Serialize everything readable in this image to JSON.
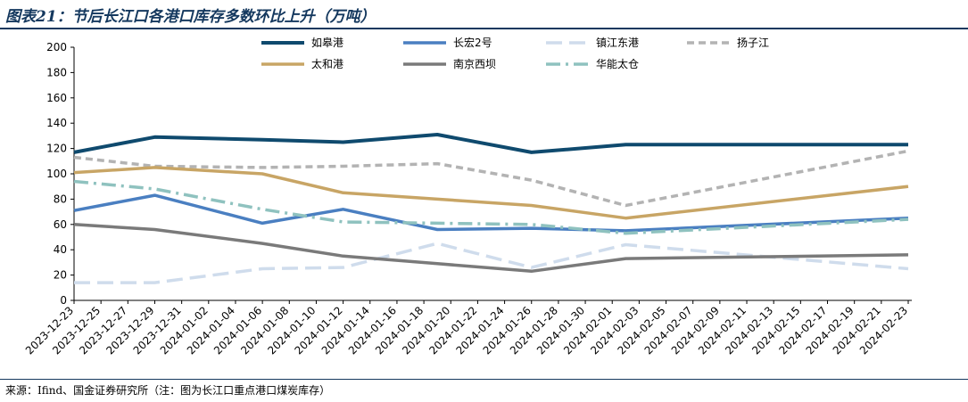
{
  "title": "图表21：节后长江口各港口库存多数环比上升（万吨）",
  "source": "来源：Ifind、国金证券研究所（注：图为长江口重点港口煤炭库存）",
  "chart_data": {
    "type": "line",
    "title": "节后长江口各港口库存多数环比上升（万吨）",
    "xlabel": "",
    "ylabel": "",
    "ylim": [
      0,
      200
    ],
    "yticks": [
      0,
      20,
      40,
      60,
      80,
      100,
      120,
      140,
      160,
      180,
      200
    ],
    "grid": false,
    "legend_position": "top",
    "categories": [
      "2023-12-23",
      "2023-12-25",
      "2023-12-27",
      "2023-12-29",
      "2023-12-31",
      "2024-01-02",
      "2024-01-04",
      "2024-01-06",
      "2024-01-08",
      "2024-01-10",
      "2024-01-12",
      "2024-01-14",
      "2024-01-16",
      "2024-01-18",
      "2024-01-20",
      "2024-01-22",
      "2024-01-24",
      "2024-01-26",
      "2024-01-28",
      "2024-01-30",
      "2024-02-01",
      "2024-02-03",
      "2024-02-05",
      "2024-02-07",
      "2024-02-09",
      "2024-02-11",
      "2024-02-13",
      "2024-02-15",
      "2024-02-17",
      "2024-02-19",
      "2024-02-21",
      "2024-02-23"
    ],
    "series": [
      {
        "name": "如皋港",
        "color": "#0f4a6e",
        "dash": "solid",
        "width": 4,
        "points": [
          [
            "2023-12-23",
            117
          ],
          [
            "2023-12-29",
            129
          ],
          [
            "2024-01-06",
            127
          ],
          [
            "2024-01-12",
            125
          ],
          [
            "2024-01-19",
            131
          ],
          [
            "2024-01-26",
            117
          ],
          [
            "2024-02-02",
            123
          ],
          [
            "2024-02-23",
            123
          ]
        ]
      },
      {
        "name": "长宏2号",
        "color": "#4a7fc1",
        "dash": "solid",
        "width": 3.5,
        "points": [
          [
            "2023-12-23",
            71
          ],
          [
            "2023-12-29",
            83
          ],
          [
            "2024-01-06",
            61
          ],
          [
            "2024-01-12",
            72
          ],
          [
            "2024-01-19",
            56
          ],
          [
            "2024-01-26",
            57
          ],
          [
            "2024-02-02",
            55
          ],
          [
            "2024-02-23",
            65
          ]
        ]
      },
      {
        "name": "镇江东港",
        "color": "#cfdcec",
        "dash": "longdash",
        "width": 3.5,
        "points": [
          [
            "2023-12-23",
            14
          ],
          [
            "2023-12-29",
            14
          ],
          [
            "2024-01-06",
            25
          ],
          [
            "2024-01-12",
            26
          ],
          [
            "2024-01-19",
            45
          ],
          [
            "2024-01-26",
            26
          ],
          [
            "2024-02-02",
            44
          ],
          [
            "2024-02-23",
            25
          ]
        ]
      },
      {
        "name": "扬子江",
        "color": "#b3b3b3",
        "dash": "dash",
        "width": 3.5,
        "points": [
          [
            "2023-12-23",
            113
          ],
          [
            "2023-12-29",
            106
          ],
          [
            "2024-01-06",
            105
          ],
          [
            "2024-01-12",
            106
          ],
          [
            "2024-01-19",
            108
          ],
          [
            "2024-01-26",
            95
          ],
          [
            "2024-02-02",
            75
          ],
          [
            "2024-02-23",
            118
          ]
        ]
      },
      {
        "name": "太和港",
        "color": "#c8a565",
        "dash": "solid",
        "width": 3.5,
        "points": [
          [
            "2023-12-23",
            101
          ],
          [
            "2023-12-29",
            105
          ],
          [
            "2024-01-06",
            100
          ],
          [
            "2024-01-12",
            85
          ],
          [
            "2024-01-19",
            80
          ],
          [
            "2024-01-26",
            75
          ],
          [
            "2024-02-02",
            65
          ],
          [
            "2024-02-23",
            90
          ]
        ]
      },
      {
        "name": "南京西坝",
        "color": "#7a7a7a",
        "dash": "solid",
        "width": 3.5,
        "points": [
          [
            "2023-12-23",
            60
          ],
          [
            "2023-12-29",
            56
          ],
          [
            "2024-01-06",
            45
          ],
          [
            "2024-01-12",
            35
          ],
          [
            "2024-01-19",
            29
          ],
          [
            "2024-01-26",
            23
          ],
          [
            "2024-02-02",
            33
          ],
          [
            "2024-02-23",
            36
          ]
        ]
      },
      {
        "name": "华能太仓",
        "color": "#8fc2bf",
        "dash": "dashdot",
        "width": 3.5,
        "points": [
          [
            "2023-12-23",
            94
          ],
          [
            "2023-12-29",
            88
          ],
          [
            "2024-01-06",
            72
          ],
          [
            "2024-01-12",
            62
          ],
          [
            "2024-01-19",
            61
          ],
          [
            "2024-01-26",
            60
          ],
          [
            "2024-02-02",
            53
          ],
          [
            "2024-02-23",
            64
          ]
        ]
      }
    ]
  }
}
